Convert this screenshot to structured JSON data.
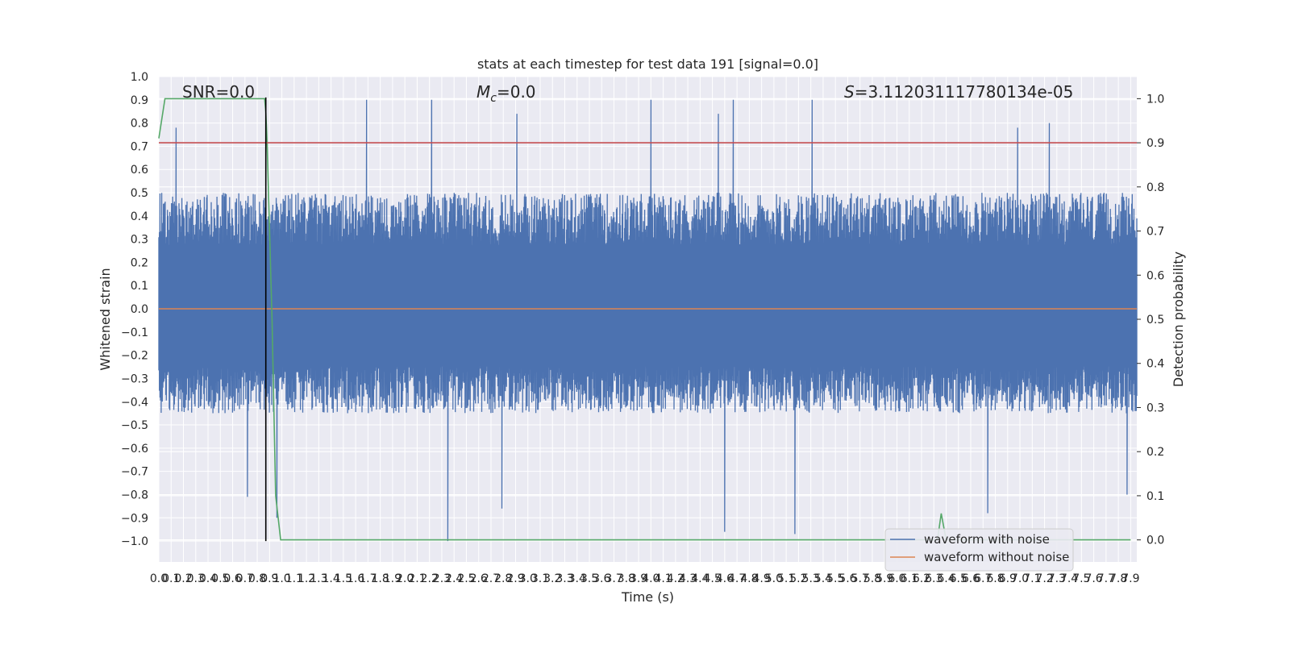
{
  "chart_data": {
    "type": "line",
    "title": "stats at each timestep for test data 191 [signal=0.0]",
    "xlabel": "Time (s)",
    "ylabel": "Whitened strain",
    "y2label": "Detection probability",
    "xlim": [
      0.0,
      7.95
    ],
    "ylim": [
      -1.09,
      1.0
    ],
    "y2lim": [
      -0.05,
      1.05
    ],
    "x_ticks": [
      0.0,
      0.1,
      0.2,
      0.3,
      0.4,
      0.5,
      0.6,
      0.7,
      0.8,
      0.9,
      1.0,
      1.1,
      1.2,
      1.3,
      1.4,
      1.5,
      1.6,
      1.7,
      1.8,
      1.9,
      2.0,
      2.1,
      2.2,
      2.3,
      2.4,
      2.5,
      2.6,
      2.7,
      2.8,
      2.9,
      3.0,
      3.1,
      3.2,
      3.3,
      3.4,
      3.5,
      3.6,
      3.7,
      3.8,
      3.9,
      4.0,
      4.1,
      4.2,
      4.3,
      4.4,
      4.5,
      4.6,
      4.7,
      4.8,
      4.9,
      5.0,
      5.1,
      5.2,
      5.3,
      5.4,
      5.5,
      5.6,
      5.7,
      5.8,
      5.9,
      6.0,
      6.1,
      6.2,
      6.3,
      6.4,
      6.5,
      6.6,
      6.7,
      6.8,
      6.9,
      7.0,
      7.1,
      7.2,
      7.3,
      7.4,
      7.5,
      7.6,
      7.7,
      7.8,
      7.9
    ],
    "x_tick_labels": [
      "0.0",
      "0.1",
      "0.2",
      "0.3",
      "0.4",
      "0.5",
      "0.6",
      "0.7",
      "0.8",
      "0.9",
      "1.0",
      "1.1",
      "1.2",
      "1.3",
      "1.4",
      "1.5",
      "1.6",
      "1.7",
      "1.8",
      "1.9",
      "2.0",
      "2.1",
      "2.2",
      "2.3",
      "2.4",
      "2.5",
      "2.6",
      "2.7",
      "2.8",
      "2.9",
      "3.0",
      "3.1",
      "3.2",
      "3.3",
      "3.4",
      "3.5",
      "3.6",
      "3.7",
      "3.8",
      "3.9",
      "4.0",
      "4.1",
      "4.2",
      "4.3",
      "4.4",
      "4.5",
      "4.6",
      "4.7",
      "4.8",
      "4.9",
      "5.0",
      "5.1",
      "5.2",
      "5.3",
      "5.4",
      "5.5",
      "5.6",
      "5.7",
      "5.8",
      "5.9",
      "6.0",
      "6.1",
      "6.2",
      "6.3",
      "6.4",
      "6.5",
      "6.6",
      "6.7",
      "6.8",
      "6.9",
      "7.0",
      "7.1",
      "7.2",
      "7.3",
      "7.4",
      "7.5",
      "7.6",
      "7.7",
      "7.8",
      "7.9"
    ],
    "y_ticks": [
      1.0,
      0.9,
      0.8,
      0.7,
      0.6,
      0.5,
      0.4,
      0.3,
      0.2,
      0.1,
      0.0,
      -0.1,
      -0.2,
      -0.3,
      -0.4,
      -0.5,
      -0.6,
      -0.7,
      -0.8,
      -0.9,
      -1.0
    ],
    "y_tick_labels": [
      "1.0",
      "0.9",
      "0.8",
      "0.7",
      "0.6",
      "0.5",
      "0.4",
      "0.3",
      "0.2",
      "0.1",
      "0.0",
      "−0.1",
      "−0.2",
      "−0.3",
      "−0.4",
      "−0.5",
      "−0.6",
      "−0.7",
      "−0.8",
      "−0.9",
      "−1.0"
    ],
    "y2_ticks": [
      1.0,
      0.9,
      0.8,
      0.7,
      0.6,
      0.5,
      0.4,
      0.3,
      0.2,
      0.1,
      0.0
    ],
    "y2_tick_labels": [
      "1.0",
      "0.9",
      "0.8",
      "0.7",
      "0.6",
      "0.5",
      "0.4",
      "0.3",
      "0.2",
      "0.1",
      "0.0"
    ],
    "grid": true,
    "legend_placement": "lower-right",
    "series": [
      {
        "name": "waveform with noise",
        "color": "#4c72b0",
        "axis": "left",
        "kind": "noise-strain",
        "typical_range": [
          -0.45,
          0.5
        ],
        "extremes": {
          "max": 0.9,
          "min": -1.0
        },
        "peaks": [
          [
            0.14,
            0.78
          ],
          [
            1.69,
            0.9
          ],
          [
            2.22,
            0.9
          ],
          [
            2.91,
            0.84
          ],
          [
            4.0,
            0.9
          ],
          [
            4.55,
            0.84
          ],
          [
            4.67,
            0.9
          ],
          [
            5.31,
            0.9
          ],
          [
            6.98,
            0.78
          ],
          [
            7.24,
            0.8
          ]
        ],
        "troughs": [
          [
            0.72,
            -0.81
          ],
          [
            0.96,
            -0.9
          ],
          [
            2.35,
            -1.0
          ],
          [
            2.79,
            -0.86
          ],
          [
            4.6,
            -0.96
          ],
          [
            5.17,
            -0.97
          ],
          [
            6.74,
            -0.88
          ],
          [
            7.87,
            -0.8
          ]
        ]
      },
      {
        "name": "waveform without noise",
        "color": "#dd8452",
        "axis": "left",
        "x": [
          0.0,
          7.95
        ],
        "y": [
          0.0,
          0.0
        ]
      },
      {
        "name": "",
        "color": "#55a868",
        "axis": "right",
        "x": [
          0.0,
          0.05,
          0.1,
          0.2,
          0.3,
          0.5,
          0.7,
          0.86,
          0.87,
          0.88,
          0.92,
          0.95,
          0.99,
          1.0,
          6.28,
          6.33,
          6.36,
          6.4,
          7.9
        ],
        "y": [
          0.91,
          1.0,
          1.0,
          1.0,
          1.0,
          1.0,
          1.0,
          1.0,
          0.97,
          0.9,
          0.5,
          0.1,
          0.0,
          0.0,
          0.0,
          0.0,
          0.06,
          0.0,
          0.0
        ]
      },
      {
        "name": "",
        "color": "#c44e52",
        "axis": "right",
        "x": [
          0.0,
          7.95
        ],
        "y": [
          0.9,
          0.9
        ]
      },
      {
        "name": "",
        "color": "#000000",
        "axis": "left",
        "x": [
          0.87,
          0.87
        ],
        "y": [
          -1.0,
          0.91
        ]
      }
    ],
    "annotations": [
      {
        "text": "SNR=0.0",
        "at": "top-left"
      },
      {
        "text_symbol": "M",
        "text_sub": "c",
        "text_rest": "=0.0",
        "at": "top-center"
      },
      {
        "text_symbol": "S",
        "text_rest": "=3.112031117780134e-05",
        "at": "top-right"
      }
    ],
    "legend": [
      {
        "label": "waveform with noise",
        "color": "#4c72b0"
      },
      {
        "label": "waveform without noise",
        "color": "#dd8452"
      }
    ],
    "colors": {
      "axes_bg": "#eaeaf2",
      "grid": "#ffffff",
      "text": "#262626"
    }
  }
}
